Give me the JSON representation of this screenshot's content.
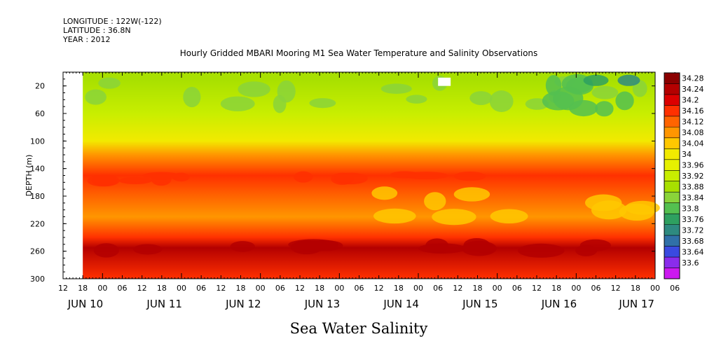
{
  "header": {
    "longitude": "LONGITUDE : 122W(-122)",
    "latitude": "LATITUDE : 36.8N",
    "year": "YEAR : 2012"
  },
  "chart_data": {
    "type": "heatmap",
    "title": "Hourly Gridded MBARI Mooring M1 Sea Water Temperature and Salinity Observations",
    "footer_title": "Sea Water Salinity",
    "ylabel": "DEPTH (m)",
    "y_axis": {
      "range": [
        300,
        0
      ],
      "reversed": true,
      "ticks": [
        20,
        60,
        100,
        140,
        180,
        220,
        260,
        300
      ]
    },
    "x_axis": {
      "range_hours": [
        0,
        180
      ],
      "hour_ticks": [
        "12",
        "18",
        "00",
        "06",
        "12",
        "18",
        "00",
        "06",
        "12",
        "18",
        "00",
        "06",
        "12",
        "18",
        "00",
        "06",
        "12",
        "18",
        "00",
        "06",
        "12",
        "18",
        "00",
        "06",
        "12",
        "18",
        "00",
        "06",
        "12",
        "18",
        "00",
        "06"
      ],
      "date_labels": [
        "JUN 10",
        "JUN 11",
        "JUN 12",
        "JUN 13",
        "JUN 14",
        "JUN 15",
        "JUN 16",
        "JUN 17"
      ]
    },
    "data_start": "JUN 10 18:00",
    "colorbar": {
      "levels": [
        "34.28",
        "34.24",
        "34.2",
        "34.16",
        "34.12",
        "34.08",
        "34.04",
        "34",
        "33.96",
        "33.92",
        "33.88",
        "33.84",
        "33.8",
        "33.76",
        "33.72",
        "33.68",
        "33.64",
        "33.6"
      ],
      "colors": [
        "#8b0000",
        "#b40000",
        "#dc0000",
        "#ff3000",
        "#ff6400",
        "#ff9600",
        "#ffc800",
        "#f2ea00",
        "#e6f000",
        "#c8ee00",
        "#a8e000",
        "#8ad43a",
        "#54c050",
        "#2ea060",
        "#2e8a80",
        "#3070a8",
        "#3a4ae0",
        "#8a2cec",
        "#cc18f0"
      ]
    },
    "depth_profile": [
      {
        "depth": 10,
        "value": 33.9
      },
      {
        "depth": 60,
        "value": 33.94
      },
      {
        "depth": 100,
        "value": 34.0
      },
      {
        "depth": 120,
        "value": 34.1
      },
      {
        "depth": 150,
        "value": 34.18
      },
      {
        "depth": 180,
        "value": 34.12
      },
      {
        "depth": 210,
        "value": 34.1
      },
      {
        "depth": 240,
        "value": 34.19
      },
      {
        "depth": 255,
        "value": 34.26
      },
      {
        "depth": 300,
        "value": 34.17
      }
    ]
  }
}
